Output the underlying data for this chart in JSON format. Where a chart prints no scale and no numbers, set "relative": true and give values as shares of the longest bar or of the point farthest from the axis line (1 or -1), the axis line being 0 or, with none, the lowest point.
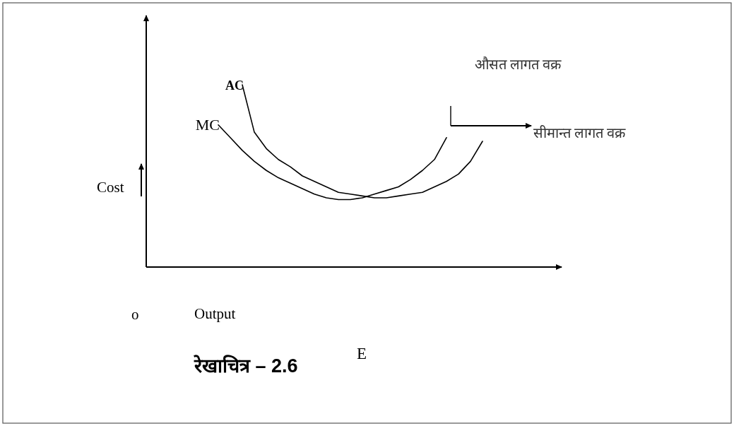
{
  "chart_data": {
    "type": "line",
    "relative": true,
    "title": "रेखाचित्र – 2.6",
    "xlabel": "Output",
    "ylabel": "Cost",
    "categories": [
      null,
      null,
      null,
      null,
      null,
      null,
      null,
      null,
      null,
      null,
      null,
      null,
      null,
      null,
      null,
      null,
      null,
      null,
      null,
      null,
      null,
      null,
      null,
      null,
      null,
      null,
      null,
      null,
      null,
      null,
      null,
      null,
      null,
      null,
      null
    ],
    "series": [
      {
        "name": "AC",
        "color": "#000000",
        "values": [
          null,
          null,
          null,
          null,
          null,
          null,
          null,
          null,
          1.0,
          0.74,
          0.65,
          0.59,
          0.55,
          0.5,
          0.47,
          0.44,
          0.41,
          0.4,
          0.39,
          0.38,
          0.38,
          0.39,
          0.4,
          0.41,
          0.44,
          0.47,
          0.51,
          0.58,
          0.69,
          null,
          null,
          null,
          null,
          null,
          null
        ]
      },
      {
        "name": "MC",
        "color": "#000000",
        "values": [
          null,
          null,
          null,
          null,
          null,
          null,
          0.78,
          0.71,
          0.64,
          0.58,
          0.53,
          0.49,
          0.46,
          0.43,
          0.4,
          0.38,
          0.37,
          0.37,
          0.38,
          0.4,
          0.42,
          0.44,
          0.48,
          0.53,
          0.59,
          0.71,
          null,
          null,
          null,
          null,
          null,
          null,
          null,
          null,
          null
        ]
      }
    ],
    "annotations": [
      "E",
      "o",
      "औसत लागत वक्र",
      "सीमान्त लागत वक्र"
    ]
  }
}
